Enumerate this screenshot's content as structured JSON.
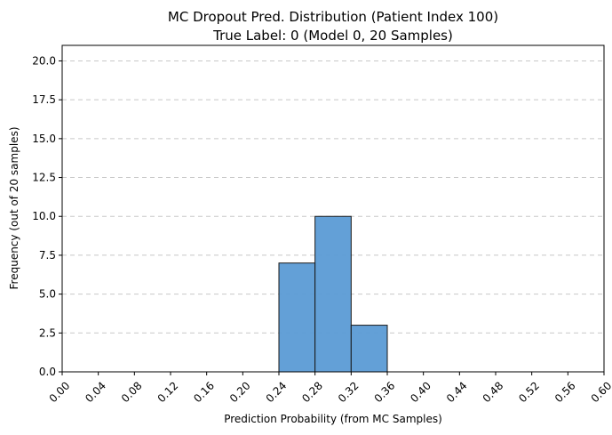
{
  "chart_data": {
    "type": "bar",
    "title_line1": "MC Dropout Pred. Distribution (Patient Index 100)",
    "title_line2": "True Label: 0 (Model 0, 20 Samples)",
    "xlabel": "Prediction Probability (from MC Samples)",
    "ylabel": "Frequency (out of 20 samples)",
    "xlim": [
      0.0,
      0.6
    ],
    "ylim": [
      0,
      21
    ],
    "x_ticks": [
      "0.00",
      "0.04",
      "0.08",
      "0.12",
      "0.16",
      "0.20",
      "0.24",
      "0.28",
      "0.32",
      "0.36",
      "0.40",
      "0.44",
      "0.48",
      "0.52",
      "0.56",
      "0.60"
    ],
    "y_ticks": [
      "0.0",
      "2.5",
      "5.0",
      "7.5",
      "10.0",
      "12.5",
      "15.0",
      "17.5",
      "20.0"
    ],
    "bins": [
      {
        "start": 0.24,
        "end": 0.28,
        "value": 7
      },
      {
        "start": 0.28,
        "end": 0.32,
        "value": 10
      },
      {
        "start": 0.32,
        "end": 0.36,
        "value": 3
      }
    ],
    "grid": "y-dashed",
    "bar_color": "#5b9bd5",
    "edge_color": "#1a1a1a"
  }
}
